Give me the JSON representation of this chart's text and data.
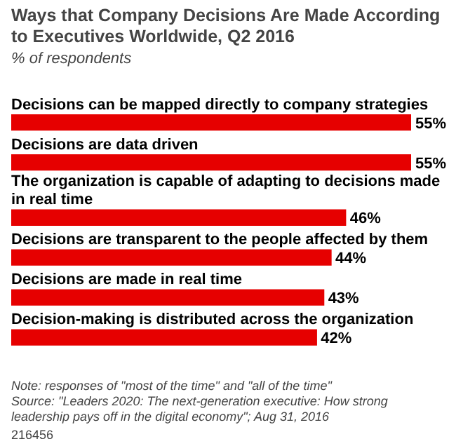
{
  "chart_data": {
    "type": "bar",
    "orientation": "horizontal",
    "title": "Ways that Company Decisions Are Made According to Executives Worldwide, Q2 2016",
    "subtitle": "% of respondents",
    "categories": [
      "Decisions can be mapped directly to company strategies",
      "Decisions are data driven",
      "The organization is capable of adapting to decisions made in real time",
      "Decisions are transparent to the people affected by them",
      "Decisions are made in real time",
      "Decision-making is distributed across the organization"
    ],
    "values": [
      55,
      55,
      46,
      44,
      43,
      42
    ],
    "value_labels": [
      "55%",
      "55%",
      "46%",
      "44%",
      "43%",
      "42%"
    ],
    "color": "#e60000",
    "tick_labels": false,
    "grid": false,
    "legend": false,
    "annotations": [
      "Note: responses of \"most of the time\" and \"all of the time\"",
      "Source: \"Leaders 2020: The next-generation executive: How strong leadership pays off in the digital economy\"; Aug 31, 2016",
      "216456"
    ]
  }
}
